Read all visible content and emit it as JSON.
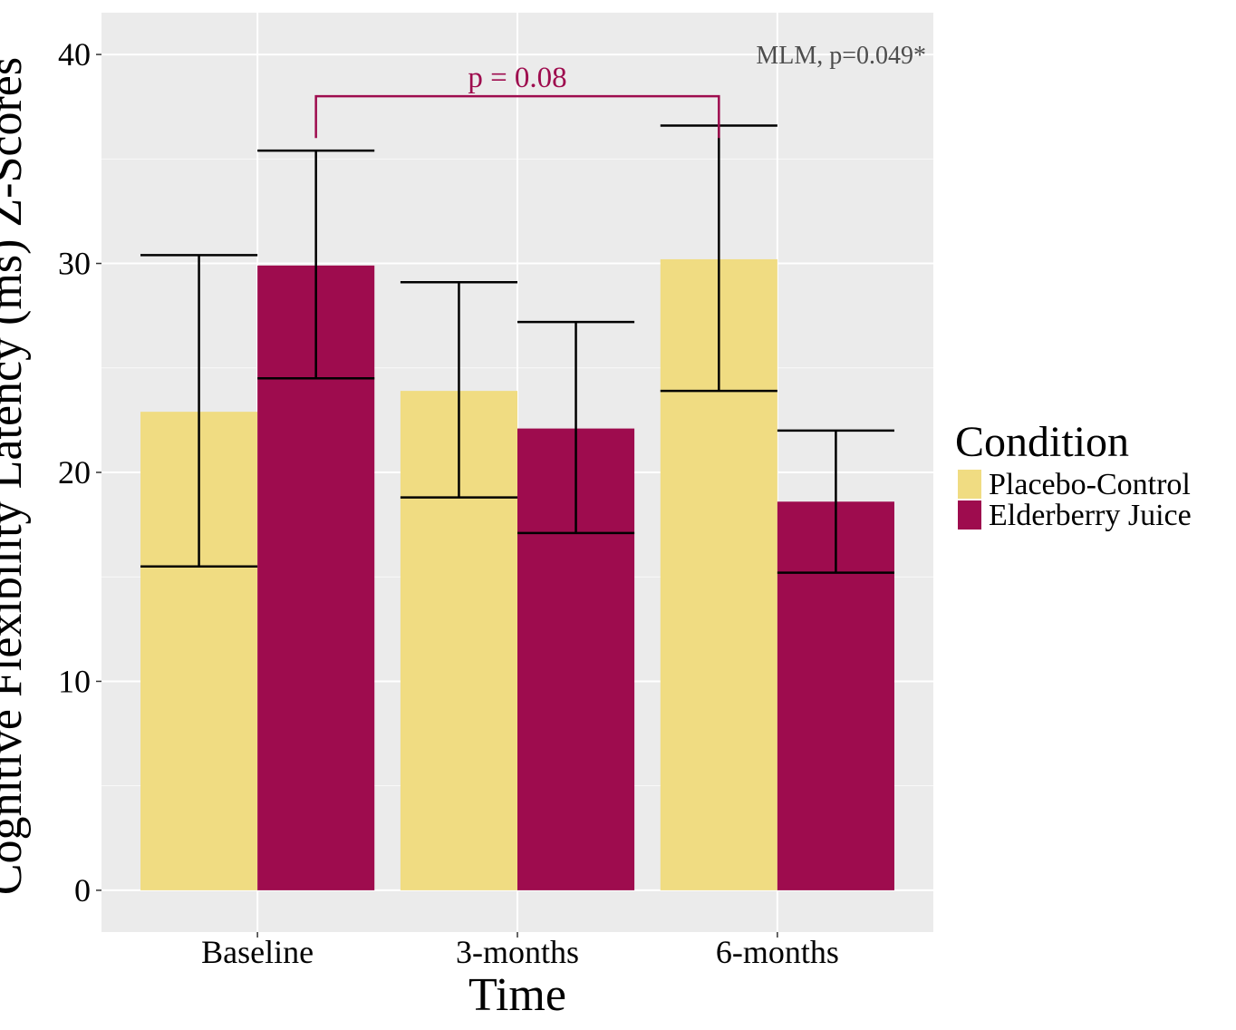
{
  "chart_data": {
    "type": "bar",
    "title": "",
    "xlabel": "Time",
    "ylabel": "Cognitive Flexibility Latency (ms) Z-Scores",
    "categories": [
      "Baseline",
      "3-months",
      "6-months"
    ],
    "ylim": [
      -2,
      42
    ],
    "yticks": [
      "0",
      "10",
      "20",
      "30",
      "40"
    ],
    "ytick_values": [
      0,
      10,
      20,
      30,
      40
    ],
    "grid": true,
    "legend": {
      "title": "Condition",
      "position": "right"
    },
    "series": [
      {
        "name": "Placebo-Control",
        "color": "#F0DC82",
        "values": [
          22.9,
          23.9,
          30.2
        ],
        "error_low": [
          15.5,
          18.8,
          23.9
        ],
        "error_high": [
          30.4,
          29.1,
          36.6
        ]
      },
      {
        "name": "Elderberry Juice",
        "color": "#9E0C4E",
        "values": [
          29.9,
          22.1,
          18.6
        ],
        "error_low": [
          24.5,
          17.1,
          15.2
        ],
        "error_high": [
          35.4,
          27.2,
          22.0
        ]
      }
    ],
    "annotations": {
      "test_label": "MLM, p=0.049*",
      "bracket_label": "p = 0.08",
      "bracket_color": "#9E0C4E",
      "bracket_from": "Baseline",
      "bracket_to": "6-months",
      "bracket_series": "Elderberry Juice",
      "bracket_y": 38.0,
      "bracket_drop_y": 36.0
    },
    "colors": {
      "panel_background": "#EBEBEB",
      "grid_major": "#FFFFFF",
      "text": "#000000",
      "annotation_text": "#4D4D4D"
    }
  }
}
